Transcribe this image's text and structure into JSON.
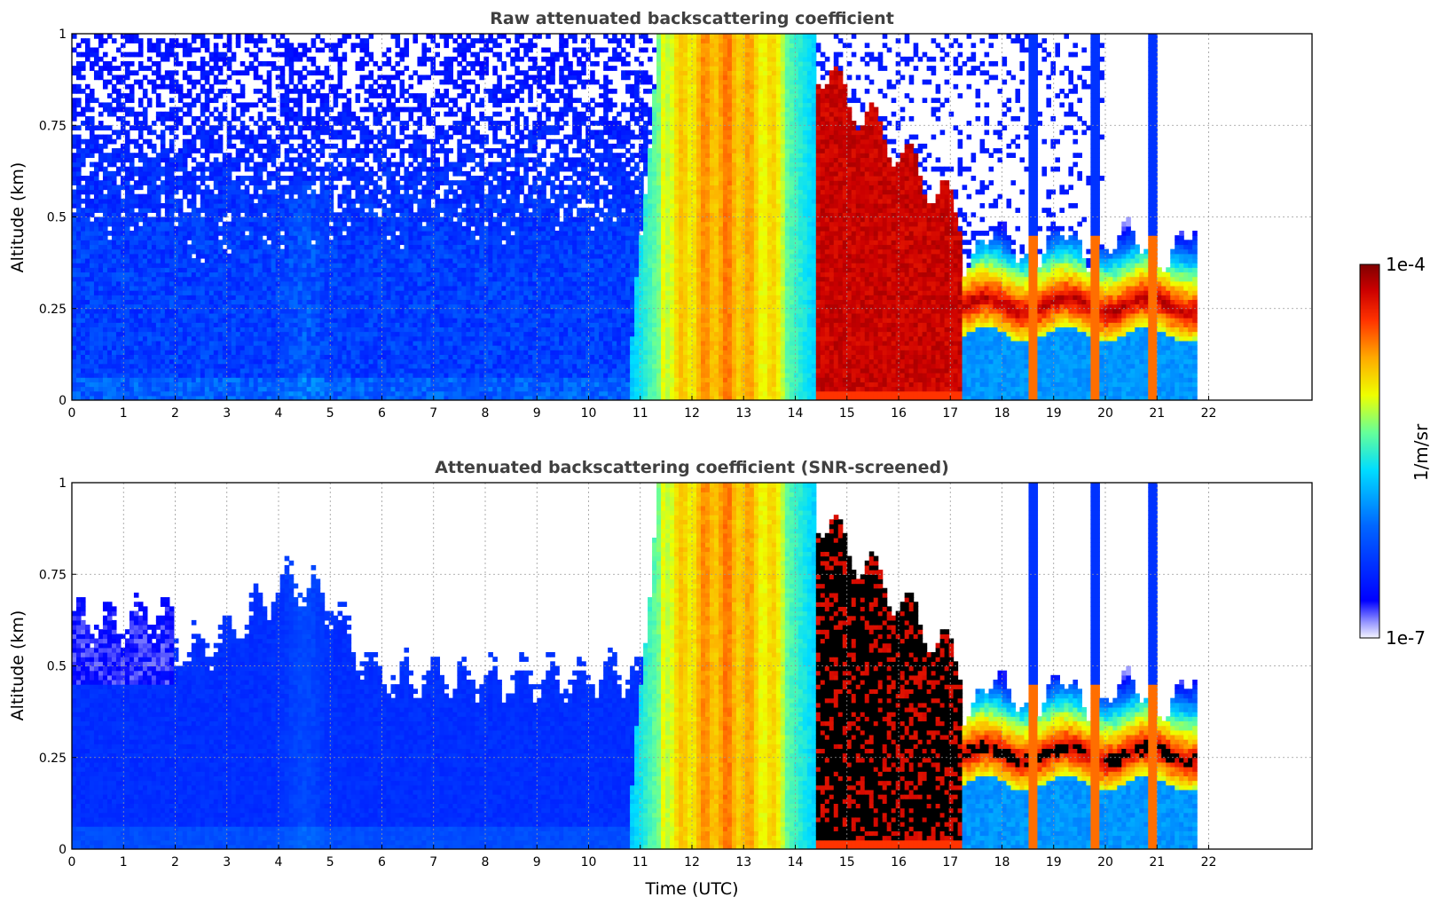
{
  "chart_data": [
    {
      "type": "heatmap",
      "title": "Raw attenuated backscattering coefficient",
      "xlabel": "",
      "ylabel": "Altitude (km)",
      "xlim": [
        0,
        24
      ],
      "ylim": [
        0,
        1
      ],
      "xticks": [
        "0",
        "1",
        "2",
        "3",
        "4",
        "5",
        "6",
        "7",
        "8",
        "9",
        "10",
        "11",
        "12",
        "13",
        "14",
        "15",
        "16",
        "17",
        "18",
        "19",
        "20",
        "21",
        "22"
      ],
      "yticks": [
        "0",
        "0.25",
        "0.5",
        "0.75",
        "1"
      ],
      "grid": true,
      "screened": false
    },
    {
      "type": "heatmap",
      "title": "Attenuated backscattering coefficient (SNR-screened)",
      "xlabel": "Time (UTC)",
      "ylabel": "Altitude (km)",
      "xlim": [
        0,
        24
      ],
      "ylim": [
        0,
        1
      ],
      "xticks": [
        "0",
        "1",
        "2",
        "3",
        "4",
        "5",
        "6",
        "7",
        "8",
        "9",
        "10",
        "11",
        "12",
        "13",
        "14",
        "15",
        "16",
        "17",
        "18",
        "19",
        "20",
        "21",
        "22"
      ],
      "yticks": [
        "0",
        "0.25",
        "0.5",
        "0.75",
        "1"
      ],
      "grid": true,
      "screened": true
    }
  ],
  "colorbar": {
    "label": "1/m/sr",
    "max_label": "1e-4",
    "min_label": "1e-7",
    "scale": "log",
    "colormap": "jet"
  },
  "data_end_hour": 21.8
}
